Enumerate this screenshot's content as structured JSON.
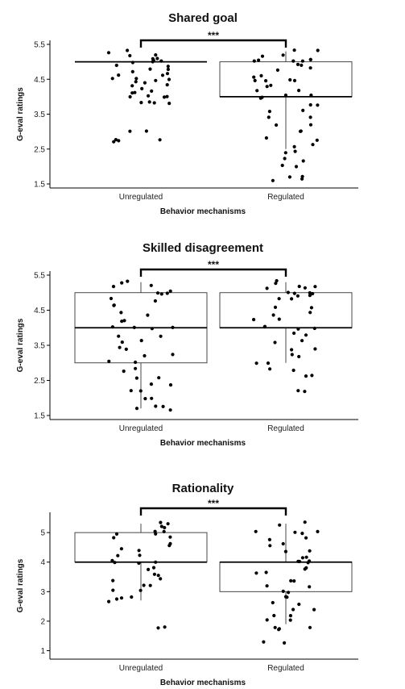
{
  "chart_data": [
    {
      "type": "box",
      "title": "Shared goal",
      "ylabel": "G-eval ratings",
      "xlabel": "Behavior mechanisms",
      "ylim": [
        1.5,
        5.5
      ],
      "yticks": [
        "1.5",
        "2.5",
        "3.5",
        "4.5",
        "5.5"
      ],
      "categories": [
        "Unregulated",
        "Regulated"
      ],
      "significance": "***",
      "series": [
        {
          "q1": 5.0,
          "median": 5.0,
          "q3": 5.0,
          "whisker_low": 5.0,
          "whisker_high": 5.0,
          "points": [
            5.3,
            5.2,
            5.1,
            5.0,
            4.9,
            4.8,
            4.7,
            4.6,
            4.5,
            4.4,
            4.3,
            4.2,
            4.1,
            4.0,
            3.85,
            3.8,
            3.0,
            2.8,
            2.7
          ]
        },
        {
          "q1": 4.0,
          "median": 4.0,
          "q3": 5.0,
          "whisker_low": 2.5,
          "whisker_high": 5.3,
          "points": [
            5.3,
            5.2,
            5.1,
            5.0,
            4.9,
            4.8,
            4.6,
            4.5,
            4.3,
            4.2,
            4.0,
            3.8,
            3.6,
            3.4,
            3.2,
            3.0,
            2.8,
            2.6,
            2.4,
            2.2,
            2.0,
            1.7,
            1.6
          ]
        }
      ]
    },
    {
      "type": "box",
      "title": "Skilled disagreement",
      "ylabel": "G-eval ratings",
      "xlabel": "Behavior mechanisms",
      "ylim": [
        1.5,
        5.5
      ],
      "yticks": [
        "1.5",
        "2.5",
        "3.5",
        "4.5",
        "5.5"
      ],
      "categories": [
        "Unregulated",
        "Regulated"
      ],
      "significance": "***",
      "series": [
        {
          "q1": 3.0,
          "median": 4.0,
          "q3": 5.0,
          "whisker_low": 1.7,
          "whisker_high": 5.3,
          "points": [
            5.3,
            5.2,
            5.0,
            4.8,
            4.6,
            4.4,
            4.2,
            4.0,
            3.8,
            3.6,
            3.4,
            3.2,
            3.0,
            2.8,
            2.6,
            2.4,
            2.2,
            2.0,
            1.8,
            1.7
          ]
        },
        {
          "q1": 4.0,
          "median": 4.0,
          "q3": 5.0,
          "whisker_low": 3.0,
          "whisker_high": 5.3,
          "points": [
            5.3,
            5.2,
            5.1,
            5.0,
            4.9,
            4.8,
            4.6,
            4.4,
            4.2,
            4.0,
            3.8,
            3.6,
            3.4,
            3.2,
            3.0,
            2.8,
            2.6,
            2.2
          ]
        }
      ]
    },
    {
      "type": "box",
      "title": "Rationality",
      "ylabel": "G-eval ratings",
      "xlabel": "Behavior mechanisms",
      "ylim": [
        0.85,
        5.55
      ],
      "yticks": [
        "1",
        "2",
        "3",
        "4",
        "5"
      ],
      "categories": [
        "Unregulated",
        "Regulated"
      ],
      "significance": "***",
      "series": [
        {
          "q1": 4.0,
          "median": 4.0,
          "q3": 5.0,
          "whisker_low": 2.7,
          "whisker_high": 5.3,
          "points": [
            5.3,
            5.2,
            5.0,
            4.8,
            4.6,
            4.4,
            4.2,
            4.0,
            3.8,
            3.6,
            3.4,
            3.2,
            3.0,
            2.8,
            2.7,
            1.75
          ]
        },
        {
          "q1": 3.0,
          "median": 4.0,
          "q3": 4.0,
          "whisker_low": 1.9,
          "whisker_high": 5.3,
          "points": [
            5.3,
            5.0,
            4.8,
            4.6,
            4.4,
            4.2,
            4.0,
            3.8,
            3.6,
            3.4,
            3.2,
            3.0,
            2.8,
            2.6,
            2.4,
            2.2,
            2.0,
            1.8,
            1.7,
            1.25
          ]
        }
      ]
    }
  ]
}
